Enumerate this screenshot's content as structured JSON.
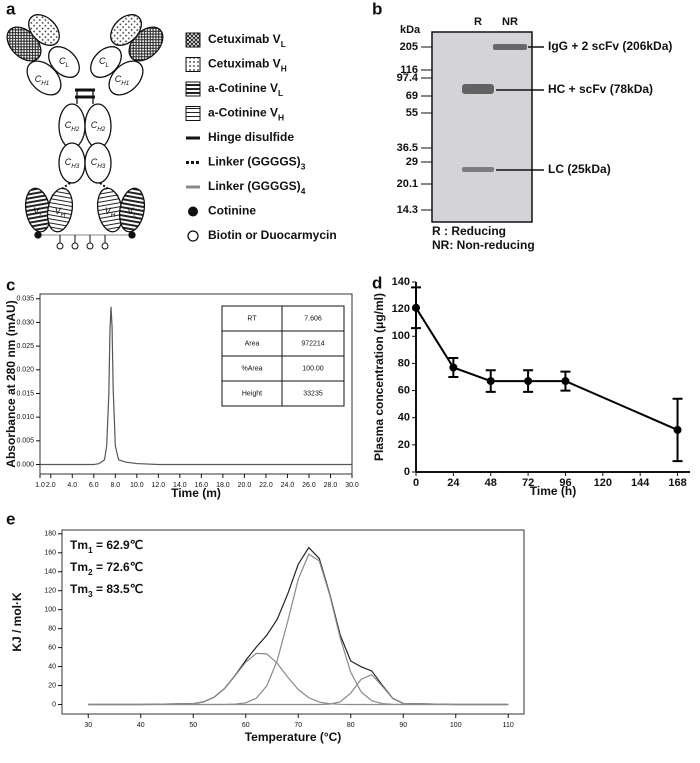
{
  "panel_labels": [
    "a",
    "b",
    "c",
    "d",
    "e"
  ],
  "diagram": {
    "legend": [
      {
        "text": "Cetuximab V",
        "sub": "L"
      },
      {
        "text": "Cetuximab V",
        "sub": "H"
      },
      {
        "text": "a-Cotinine V",
        "sub": "L"
      },
      {
        "text": "a-Cotinine V",
        "sub": "H"
      },
      {
        "text": "Hinge disulfide"
      },
      {
        "text": "Linker (GGGGS)",
        "sub": "3"
      },
      {
        "text": "Linker (GGGGS)",
        "sub": "4"
      },
      {
        "text": "Cotinine"
      },
      {
        "text": "Biotin or Duocarmycin"
      }
    ],
    "domains": [
      {
        "text": "C",
        "sub": "H1"
      },
      {
        "text": "C",
        "sub": "L"
      },
      {
        "text": "C",
        "sub": "H1"
      },
      {
        "text": "C",
        "sub": "L"
      },
      {
        "text": "C",
        "sub": "H2"
      },
      {
        "text": "C",
        "sub": "H2"
      },
      {
        "text": "C",
        "sub": "H3"
      },
      {
        "text": "C",
        "sub": "H3"
      },
      {
        "text": "V",
        "sub": "L"
      },
      {
        "text": "V",
        "sub": "H"
      },
      {
        "text": "V",
        "sub": "H"
      },
      {
        "text": "V",
        "sub": "L"
      }
    ]
  },
  "gel": {
    "unit": "kDa",
    "lanes": [
      "R",
      "NR"
    ],
    "markers": [
      205,
      116,
      97.4,
      69,
      55,
      36.5,
      29,
      20.1,
      14.3
    ],
    "bands": [
      "IgG + 2 scFv (206kDa)",
      "HC + scFv (78kDa)",
      "LC (25kDa)"
    ],
    "notes": [
      "R   : Reducing",
      "NR: Non-reducing"
    ]
  },
  "chart_data": [
    {
      "type": "line",
      "xlabel": "Time (m)",
      "ylabel": "Absorbance at 280 nm (mAU)",
      "frame": true,
      "x": [
        1,
        6,
        6.5,
        7,
        7.2,
        7.4,
        7.5,
        7.6,
        7.7,
        7.8,
        8.0,
        8.3,
        9,
        10,
        12,
        15,
        20,
        25,
        30
      ],
      "series": [
        {
          "color": "#555555",
          "values": [
            0,
            0,
            0.0002,
            0.001,
            0.004,
            0.015,
            0.028,
            0.0333,
            0.029,
            0.016,
            0.004,
            0.001,
            0.0005,
            0.0002,
            0,
            0,
            0,
            0,
            0
          ]
        }
      ],
      "xlim": [
        1,
        30
      ],
      "ylim": [
        -0.002,
        0.036
      ],
      "xticks": [
        {
          "value": 1,
          "label": "1.0"
        },
        {
          "value": 2,
          "label": "2.0"
        },
        {
          "value": 4,
          "label": "4.0"
        },
        {
          "value": 6,
          "label": "6.0"
        },
        {
          "value": 8,
          "label": "8.0"
        },
        {
          "value": 10,
          "label": "10.0"
        },
        {
          "value": 12,
          "label": "12.0"
        },
        {
          "value": 14,
          "label": "14.0"
        },
        {
          "value": 16,
          "label": "16.0"
        },
        {
          "value": 18,
          "label": "18.0"
        },
        {
          "value": 20,
          "label": "20.0"
        },
        {
          "value": 22,
          "label": "22.0"
        },
        {
          "value": 24,
          "label": "24.0"
        },
        {
          "value": 26,
          "label": "26.0"
        },
        {
          "value": 28,
          "label": "28.0"
        },
        {
          "value": 30,
          "label": "30.0"
        }
      ],
      "yticks": [
        {
          "value": 0,
          "label": "0.000"
        },
        {
          "value": 0.005,
          "label": "0.005"
        },
        {
          "value": 0.01,
          "label": "0.010"
        },
        {
          "value": 0.015,
          "label": "0.015"
        },
        {
          "value": 0.02,
          "label": "0.020"
        },
        {
          "value": 0.025,
          "label": "0.025"
        },
        {
          "value": 0.03,
          "label": "0.030"
        },
        {
          "value": 0.035,
          "label": "0.035"
        }
      ],
      "table": {
        "rows": [
          [
            "RT",
            "7.606"
          ],
          [
            "Area",
            "972214"
          ],
          [
            "%Area",
            "100.00"
          ],
          [
            "Height",
            "33235"
          ]
        ]
      }
    },
    {
      "type": "line",
      "xlabel": "Time (h)",
      "ylabel": "Plasma concentration (μg/ml)",
      "frame": false,
      "markers": true,
      "x": [
        0,
        24,
        48,
        72,
        96,
        168
      ],
      "series": [
        {
          "color": "#000000",
          "values": [
            121,
            77,
            67,
            67,
            67,
            31
          ],
          "errors": [
            15,
            7,
            8,
            8,
            7,
            23
          ]
        }
      ],
      "xlim": [
        0,
        176
      ],
      "ylim": [
        0,
        140
      ],
      "xticks": [
        0,
        24,
        48,
        72,
        96,
        120,
        144,
        168
      ],
      "yticks": [
        0,
        20,
        40,
        60,
        80,
        100,
        120,
        140
      ]
    },
    {
      "type": "line",
      "xlabel": "Temperature (°C)",
      "ylabel": "KJ / mol·K",
      "frame": true,
      "x": [
        30,
        40,
        50,
        52,
        54,
        56,
        58,
        60,
        62,
        64,
        66,
        68,
        70,
        72,
        74,
        76,
        78,
        80,
        82,
        84,
        86,
        88,
        90,
        100,
        110
      ],
      "series": [
        {
          "color": "#222222",
          "values": [
            0,
            0,
            0.9,
            2.9,
            7.8,
            17.1,
            30.8,
            46.5,
            60.5,
            73.0,
            89.9,
            116.7,
            147.9,
            165.5,
            154.0,
            116.5,
            73.0,
            45.9,
            39.8,
            35.4,
            20.4,
            6.5,
            1.1,
            0,
            0
          ]
        },
        {
          "color": "#8a8a8a",
          "values": [
            0,
            0,
            0.9,
            2.9,
            7.8,
            17.0,
            30.4,
            44.7,
            53.9,
            53.4,
            43.4,
            28.9,
            15.8,
            7.1,
            2.6,
            0.8,
            0.2,
            0,
            0,
            0,
            0,
            0,
            0,
            0,
            0
          ]
        },
        {
          "color": "#8a8a8a",
          "values": [
            0,
            0,
            0,
            0,
            0,
            0.1,
            0.4,
            1.8,
            6.6,
            19.6,
            46.5,
            87.8,
            132.1,
            158.4,
            151.4,
            115.3,
            70.0,
            33.9,
            13.1,
            4.0,
            1.0,
            0.2,
            0,
            0,
            0
          ]
        },
        {
          "color": "#8a8a8a",
          "values": [
            0,
            0,
            0,
            0,
            0,
            0,
            0,
            0,
            0,
            0,
            0,
            0,
            0,
            0,
            0,
            0.4,
            2.8,
            12.0,
            26.7,
            31.4,
            19.4,
            6.3,
            1.1,
            0,
            0
          ]
        }
      ],
      "xlim": [
        25,
        113
      ],
      "ylim": [
        -10,
        184
      ],
      "xticks": [
        30,
        40,
        50,
        60,
        70,
        80,
        90,
        100,
        110
      ],
      "yticks": [
        0,
        20,
        40,
        60,
        80,
        100,
        120,
        140,
        160,
        180
      ],
      "annotations": [
        {
          "text": "Tm",
          "sub": "1",
          "rest": " = 62.9℃"
        },
        {
          "text": "Tm",
          "sub": "2",
          "rest": " = 72.6℃"
        },
        {
          "text": "Tm",
          "sub": "3",
          "rest": " = 83.5℃"
        }
      ]
    }
  ]
}
